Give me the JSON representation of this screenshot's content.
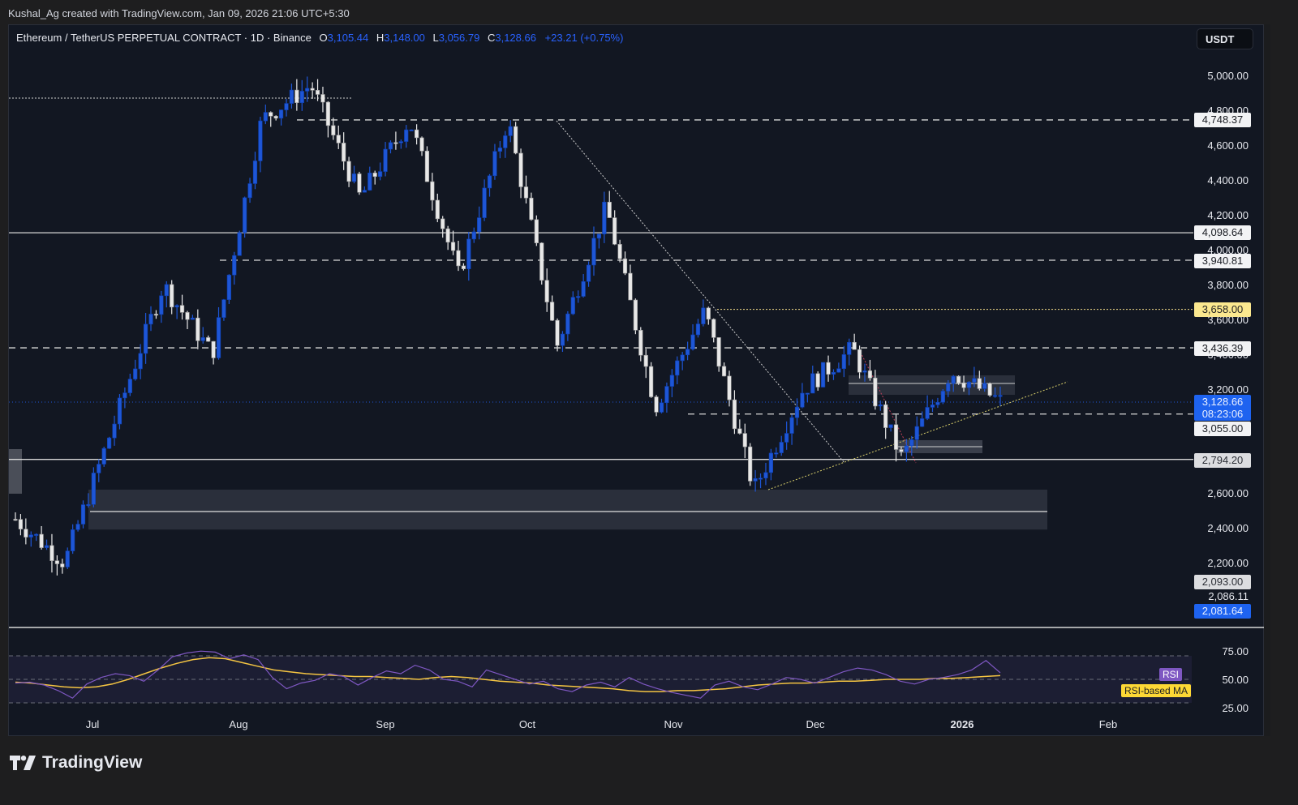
{
  "credit": "Kushal_Ag created with TradingView.com, Jan 09, 2026 21:06 UTC+5:30",
  "legend": {
    "symbol": "Ethereum / TetherUS PERPETUAL CONTRACT · 1D · Binance",
    "o_label": "O",
    "o_value": "3,105.44",
    "h_label": "H",
    "h_value": "3,148.00",
    "l_label": "L",
    "l_value": "3,056.79",
    "c_label": "C",
    "c_value": "3,128.66",
    "change": "+23.21 (+0.75%)"
  },
  "currency_button": "USDT",
  "price_axis": {
    "ticks": [
      "5,000.00",
      "4,800.00",
      "4,600.00",
      "4,400.00",
      "4,200.00",
      "4,000.00",
      "3,800.00",
      "3,600.00",
      "3,400.00",
      "3,200.00",
      "2,600.00",
      "2,400.00",
      "2,200.00",
      "2,086.11"
    ],
    "tags": {
      "t4748": "4,748.37",
      "t4098": "4,098.64",
      "t3940": "3,940.81",
      "t3658": "3,658.00",
      "t3436": "3,436.39",
      "current_price": "3,128.66",
      "countdown": "08:23:06",
      "t3055": "3,055.00",
      "t2794": "2,794.20",
      "t2093": "2,093.00",
      "t2081": "2,081.64"
    }
  },
  "time_axis": [
    "Jul",
    "Aug",
    "Sep",
    "Oct",
    "Nov",
    "Dec",
    "2026",
    "Feb"
  ],
  "rsi_panel": {
    "ticks": [
      "75.00",
      "50.00",
      "25.00"
    ],
    "rsi_label": "RSI",
    "ma_label": "RSI-based MA"
  },
  "brand": "TradingView",
  "colors": {
    "up": "#1e56d6",
    "down": "#e8e8e8",
    "background": "#121722",
    "rsi": "#7e57c2",
    "rsi_ma": "#f5c542",
    "accent_blue": "#2962ff"
  },
  "chart_data": [
    {
      "type": "candlestick",
      "title": "Ethereum / TetherUS PERPETUAL CONTRACT · 1D · Binance",
      "xlabel": "",
      "ylabel": "USDT",
      "ylim": [
        2000,
        5050
      ],
      "x_ticks": [
        "Jul",
        "Aug",
        "Sep",
        "Oct",
        "Nov",
        "Dec",
        "2026",
        "Feb"
      ],
      "approx_key_points": [
        {
          "date": "late Jun 2025",
          "price": 2450
        },
        {
          "date": "early Jul 2025",
          "price": 2200
        },
        {
          "date": "mid Jul 2025",
          "price": 3000
        },
        {
          "date": "late Jul 2025",
          "price": 3800
        },
        {
          "date": "early Aug 2025",
          "price": 3400
        },
        {
          "date": "mid Aug 2025",
          "price": 4750
        },
        {
          "date": "late Aug 2025",
          "price": 4950
        },
        {
          "date": "early Sep 2025",
          "price": 4300
        },
        {
          "date": "mid Sep 2025",
          "price": 4750
        },
        {
          "date": "late Sep 2025",
          "price": 3850
        },
        {
          "date": "early Oct 2025",
          "price": 4750
        },
        {
          "date": "mid Oct 2025",
          "price": 3450
        },
        {
          "date": "late Oct 2025",
          "price": 4250
        },
        {
          "date": "early Nov 2025",
          "price": 3100
        },
        {
          "date": "mid Nov 2025",
          "price": 3650
        },
        {
          "date": "late Nov 2025",
          "price": 2620
        },
        {
          "date": "early Dec 2025",
          "price": 3200
        },
        {
          "date": "mid Dec 2025",
          "price": 3430
        },
        {
          "date": "late Dec 2025",
          "price": 2800
        },
        {
          "date": "early Jan 2026",
          "price": 3300
        },
        {
          "date": "Jan 09 2026",
          "open": 3105.44,
          "high": 3148.0,
          "low": 3056.79,
          "close": 3128.66
        }
      ],
      "horizontal_levels": [
        4748.37,
        4098.64,
        3940.81,
        3658.0,
        3436.39,
        3055.0,
        2794.2,
        2093.0
      ],
      "zones": [
        {
          "from": 2390,
          "to": 2620
        }
      ],
      "annotations": [
        "Downtrend line from Oct high",
        "Rising trendline from Nov low",
        "3,658.00 dotted level"
      ]
    },
    {
      "type": "line",
      "title": "RSI",
      "ylim": [
        20,
        85
      ],
      "y_ticks": [
        75,
        50,
        25
      ],
      "series": [
        {
          "name": "RSI",
          "values": [
            46,
            47,
            44,
            38,
            30,
            45,
            52,
            56,
            54,
            48,
            60,
            74,
            78,
            80,
            79,
            72,
            76,
            71,
            52,
            40,
            46,
            49,
            56,
            53,
            44,
            52,
            59,
            56,
            65,
            60,
            50,
            48,
            42,
            60,
            55,
            50,
            45,
            48,
            40,
            37,
            44,
            47,
            42,
            52,
            45,
            40,
            36,
            33,
            30,
            44,
            48,
            42,
            39,
            45,
            52,
            50,
            46,
            52,
            58,
            62,
            60,
            55,
            48,
            45,
            50,
            52,
            55,
            60,
            70,
            57
          ]
        },
        {
          "name": "RSI-based MA",
          "values": [
            47,
            46,
            44,
            42,
            41,
            42,
            45,
            50,
            56,
            62,
            67,
            71,
            73,
            72,
            68,
            64,
            60,
            58,
            56,
            55,
            54,
            53,
            53,
            52,
            51,
            50,
            52,
            53,
            52,
            50,
            48,
            47,
            46,
            44,
            43,
            42,
            41,
            40,
            38,
            37,
            37,
            38,
            38,
            39,
            40,
            42,
            44,
            45,
            46,
            46,
            47,
            48,
            48,
            49,
            50,
            50,
            50,
            51,
            51,
            52,
            53,
            54
          ]
        }
      ]
    }
  ]
}
